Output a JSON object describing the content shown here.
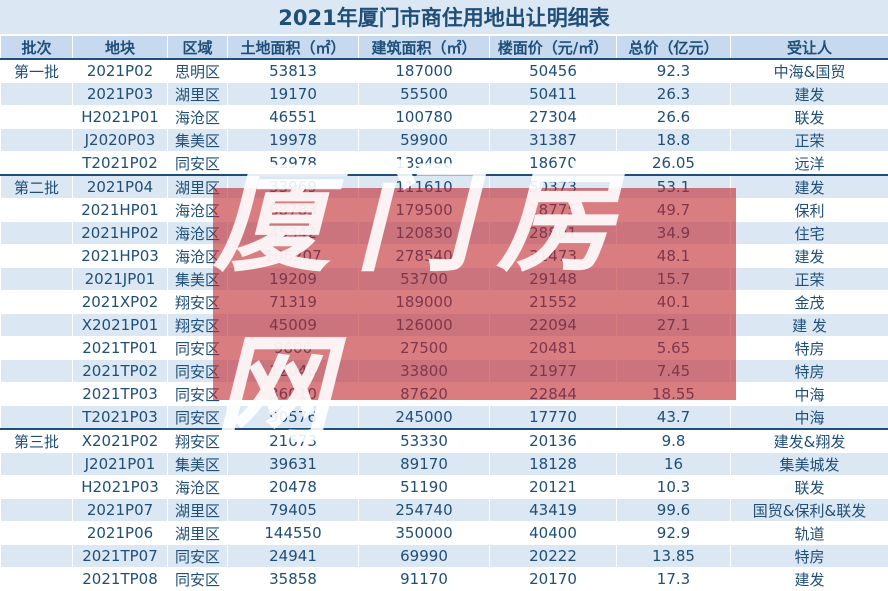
{
  "title": "2021年厦门市商住用地出让明细表",
  "headers": [
    "批次",
    "地块",
    "区域",
    "土地面积（㎡）",
    "建筑面积（㎡）",
    "楼面价（元/㎡）",
    "总价（亿元）",
    "受让人"
  ],
  "watermark": "厦门房网",
  "colors": {
    "accent": "#1f4e79",
    "header_bg": "#c6d9ee",
    "stripe": "#dbe8f4",
    "watermark": "#c0262d"
  },
  "rows": [
    {
      "batch": "第一批",
      "plot": "2021P02",
      "district": "思明区",
      "land": "53813",
      "build": "187000",
      "price": "50456",
      "total": "92.3",
      "buyer": "中海&国贸"
    },
    {
      "batch": "",
      "plot": "2021P03",
      "district": "湖里区",
      "land": "19170",
      "build": "55500",
      "price": "50411",
      "total": "26.3",
      "buyer": "建发"
    },
    {
      "batch": "",
      "plot": "H2021P01",
      "district": "海沧区",
      "land": "46551",
      "build": "100780",
      "price": "27304",
      "total": "26.6",
      "buyer": "联发"
    },
    {
      "batch": "",
      "plot": "J2020P03",
      "district": "集美区",
      "land": "19978",
      "build": "59900",
      "price": "31387",
      "total": "18.8",
      "buyer": "正荣"
    },
    {
      "batch": "",
      "plot": "T2021P02",
      "district": "同安区",
      "land": "52978",
      "build": "139490",
      "price": "18670",
      "total": "26.05",
      "buyer": "远洋"
    },
    {
      "batch": "第二批",
      "plot": "2021P04",
      "district": "湖里区",
      "land": "33969",
      "build": "111610",
      "price": "50373",
      "total": "53.1",
      "buyer": "建发"
    },
    {
      "batch": "",
      "plot": "2021HP01",
      "district": "海沧区",
      "land": "68783",
      "build": "179500",
      "price": "28775",
      "total": "49.7",
      "buyer": "保利"
    },
    {
      "batch": "",
      "plot": "2021HP02",
      "district": "海沧区",
      "land": "45342",
      "build": "120830",
      "price": "28801",
      "total": "34.9",
      "buyer": "住宅"
    },
    {
      "batch": "",
      "plot": "2021HP03",
      "district": "海沧区",
      "land": "106207",
      "build": "278540",
      "price": "31473",
      "total": "48.1",
      "buyer": "建发"
    },
    {
      "batch": "",
      "plot": "2021JP01",
      "district": "集美区",
      "land": "19209",
      "build": "53700",
      "price": "29148",
      "total": "15.7",
      "buyer": "正荣"
    },
    {
      "batch": "",
      "plot": "2021XP02",
      "district": "翔安区",
      "land": "71319",
      "build": "189000",
      "price": "21552",
      "total": "40.1",
      "buyer": "金茂"
    },
    {
      "batch": "",
      "plot": "X2021P01",
      "district": "翔安区",
      "land": "45009",
      "build": "126000",
      "price": "22094",
      "total": "27.1",
      "buyer": "建 发"
    },
    {
      "batch": "",
      "plot": "2021TP01",
      "district": "同安区",
      "land": "9806",
      "build": "27500",
      "price": "20481",
      "total": "5.65",
      "buyer": "特房"
    },
    {
      "batch": "",
      "plot": "2021TP02",
      "district": "同安区",
      "land": "12046",
      "build": "33800",
      "price": "21977",
      "total": "7.45",
      "buyer": "特房"
    },
    {
      "batch": "",
      "plot": "2021TP03",
      "district": "同安区",
      "land": "36010",
      "build": "87620",
      "price": "22844",
      "total": "18.55",
      "buyer": "中海"
    },
    {
      "batch": "",
      "plot": "T2021P03",
      "district": "同安区",
      "land": "90576",
      "build": "245000",
      "price": "17770",
      "total": "43.7",
      "buyer": "中海"
    },
    {
      "batch": "第三批",
      "plot": "X2021P02",
      "district": "翔安区",
      "land": "21673",
      "build": "53330",
      "price": "20136",
      "total": "9.8",
      "buyer": "建发&翔发"
    },
    {
      "batch": "",
      "plot": "J2021P01",
      "district": "集美区",
      "land": "39631",
      "build": "89170",
      "price": "18128",
      "total": "16",
      "buyer": "集美城发"
    },
    {
      "batch": "",
      "plot": "H2021P03",
      "district": "海沧区",
      "land": "20478",
      "build": "51190",
      "price": "20121",
      "total": "10.3",
      "buyer": "联发"
    },
    {
      "batch": "",
      "plot": "2021P07",
      "district": "湖里区",
      "land": "79405",
      "build": "254740",
      "price": "43419",
      "total": "99.6",
      "buyer": "国贸&保利&联发"
    },
    {
      "batch": "",
      "plot": "2021P06",
      "district": "湖里区",
      "land": "144550",
      "build": "350000",
      "price": "40400",
      "total": "92.9",
      "buyer": "轨道"
    },
    {
      "batch": "",
      "plot": "2021TP07",
      "district": "同安区",
      "land": "24941",
      "build": "69990",
      "price": "20222",
      "total": "13.85",
      "buyer": "特房"
    },
    {
      "batch": "",
      "plot": "2021TP08",
      "district": "同安区",
      "land": "35858",
      "build": "91170",
      "price": "20170",
      "total": "17.3",
      "buyer": "建发"
    }
  ]
}
